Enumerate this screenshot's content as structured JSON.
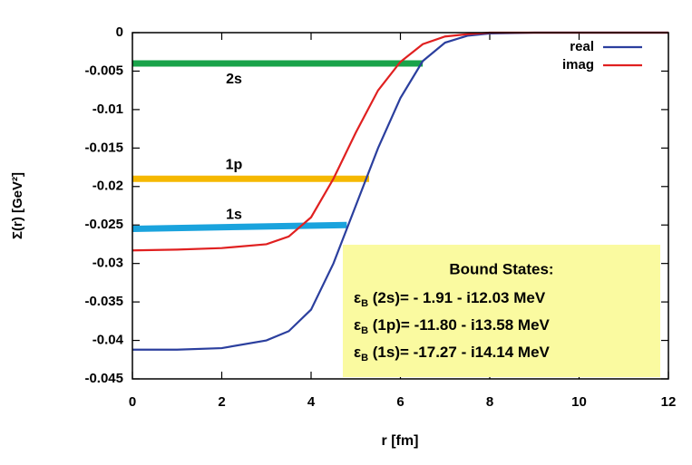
{
  "chart_data": {
    "type": "line",
    "xlabel": "r [fm]",
    "ylabel": "Σ(r) [GeV²]",
    "x": [
      0,
      1,
      2,
      3,
      3.5,
      4,
      4.5,
      5,
      5.5,
      6,
      6.5,
      7,
      7.5,
      8,
      9,
      10,
      11,
      12
    ],
    "series": [
      {
        "name": "real",
        "color": "#2b3f9e",
        "values": [
          -0.0412,
          -0.0412,
          -0.041,
          -0.04,
          -0.0388,
          -0.036,
          -0.03,
          -0.0225,
          -0.015,
          -0.0085,
          -0.0037,
          -0.0013,
          -0.0004,
          -0.0001,
          0,
          0,
          0,
          0
        ]
      },
      {
        "name": "imag",
        "color": "#e02020",
        "values": [
          -0.0283,
          -0.0282,
          -0.028,
          -0.0275,
          -0.0265,
          -0.024,
          -0.019,
          -0.013,
          -0.0075,
          -0.0038,
          -0.0015,
          -0.0005,
          -0.0002,
          0,
          0,
          0,
          0,
          0
        ]
      }
    ],
    "xlim": [
      0,
      12
    ],
    "ylim": [
      -0.045,
      0
    ],
    "xticks": [
      0,
      2,
      4,
      6,
      8,
      10,
      12
    ],
    "yticks": [
      0,
      -0.005,
      -0.01,
      -0.015,
      -0.02,
      -0.025,
      -0.03,
      -0.035,
      -0.04,
      -0.045
    ],
    "legend": "upper right",
    "levels": [
      {
        "label": "2s",
        "color": "#1aa34a",
        "x": [
          0,
          6.5
        ],
        "y": [
          -0.004,
          -0.004
        ]
      },
      {
        "label": "1p",
        "color": "#f5b800",
        "x": [
          0,
          5.3
        ],
        "y": [
          -0.019,
          -0.019
        ]
      },
      {
        "label": "1s",
        "color": "#1aa3dd",
        "x": [
          0,
          4.8
        ],
        "y": [
          -0.0255,
          -0.025
        ]
      }
    ],
    "box": {
      "title": "Bound States:",
      "lines": [
        {
          "symbol": "ε",
          "sub": "B",
          "text": " (2s)=  - 1.91 - i12.03 MeV"
        },
        {
          "symbol": "ε",
          "sub": "B",
          "text": " (1p)= -11.80 - i13.58 MeV"
        },
        {
          "symbol": "ε",
          "sub": "B",
          "text": " (1s)= -17.27 - i14.14 MeV"
        }
      ]
    }
  }
}
